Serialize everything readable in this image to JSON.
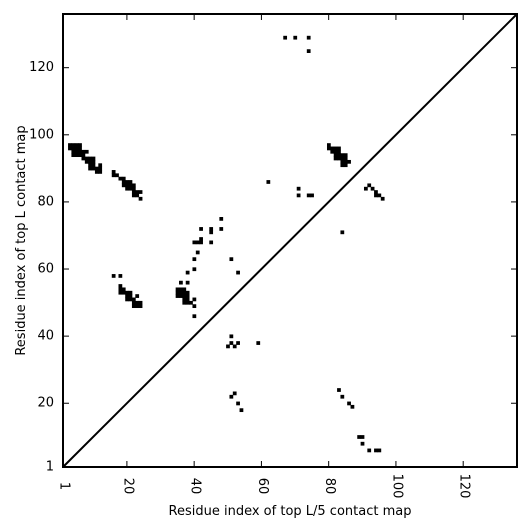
{
  "chart_data": {
    "type": "heatmap",
    "title": "",
    "xlabel": "Residue index of top L/5 contact map",
    "ylabel": "Residue index of top L contact map",
    "xlim": [
      1,
      136
    ],
    "ylim": [
      1,
      136
    ],
    "x_ticks": [
      1,
      20,
      40,
      60,
      80,
      100,
      120
    ],
    "y_ticks": [
      1,
      20,
      40,
      60,
      80,
      100,
      120
    ],
    "x_tick_rotation": 90,
    "diagonal": true,
    "grid": false,
    "points_below_diagonal": [
      [
        50,
        37
      ],
      [
        51,
        38
      ],
      [
        52,
        37
      ],
      [
        53,
        38
      ],
      [
        51,
        40
      ],
      [
        59,
        38
      ],
      [
        51,
        22
      ],
      [
        52,
        23
      ],
      [
        53,
        20
      ],
      [
        54,
        18
      ],
      [
        83,
        24
      ],
      [
        84,
        22
      ],
      [
        86,
        20
      ],
      [
        87,
        19
      ],
      [
        89,
        10
      ],
      [
        90,
        10
      ],
      [
        90,
        8
      ],
      [
        92,
        6
      ],
      [
        94,
        6
      ],
      [
        95,
        6
      ]
    ],
    "points_above_diagonal": [
      [
        3,
        97
      ],
      [
        4,
        97
      ],
      [
        5,
        97
      ],
      [
        6,
        97
      ],
      [
        3,
        96
      ],
      [
        4,
        96
      ],
      [
        5,
        96
      ],
      [
        6,
        96
      ],
      [
        4,
        95
      ],
      [
        5,
        95
      ],
      [
        6,
        95
      ],
      [
        7,
        95
      ],
      [
        8,
        95
      ],
      [
        4,
        94
      ],
      [
        5,
        94
      ],
      [
        6,
        94
      ],
      [
        7,
        94
      ],
      [
        7,
        93
      ],
      [
        8,
        93
      ],
      [
        9,
        93
      ],
      [
        10,
        93
      ],
      [
        8,
        92
      ],
      [
        9,
        92
      ],
      [
        10,
        92
      ],
      [
        9,
        91
      ],
      [
        10,
        91
      ],
      [
        12,
        91
      ],
      [
        9,
        90
      ],
      [
        10,
        90
      ],
      [
        11,
        90
      ],
      [
        12,
        90
      ],
      [
        11,
        89
      ],
      [
        12,
        89
      ],
      [
        16,
        89
      ],
      [
        16,
        88
      ],
      [
        17,
        88
      ],
      [
        18,
        87
      ],
      [
        19,
        87
      ],
      [
        19,
        86
      ],
      [
        20,
        86
      ],
      [
        21,
        86
      ],
      [
        19,
        85
      ],
      [
        20,
        85
      ],
      [
        21,
        85
      ],
      [
        22,
        85
      ],
      [
        20,
        84
      ],
      [
        21,
        84
      ],
      [
        22,
        84
      ],
      [
        22,
        83
      ],
      [
        23,
        83
      ],
      [
        24,
        83
      ],
      [
        22,
        82
      ],
      [
        23,
        82
      ],
      [
        24,
        81
      ],
      [
        16,
        58
      ],
      [
        18,
        58
      ],
      [
        18,
        55
      ],
      [
        18,
        54
      ],
      [
        19,
        54
      ],
      [
        18,
        53
      ],
      [
        19,
        53
      ],
      [
        20,
        53
      ],
      [
        21,
        53
      ],
      [
        20,
        52
      ],
      [
        21,
        52
      ],
      [
        23,
        52
      ],
      [
        20,
        51
      ],
      [
        21,
        51
      ],
      [
        22,
        51
      ],
      [
        22,
        50
      ],
      [
        23,
        50
      ],
      [
        24,
        50
      ],
      [
        22,
        49
      ],
      [
        23,
        49
      ],
      [
        24,
        49
      ],
      [
        36,
        56
      ],
      [
        38,
        56
      ],
      [
        35,
        54
      ],
      [
        36,
        54
      ],
      [
        37,
        54
      ],
      [
        35,
        53
      ],
      [
        36,
        53
      ],
      [
        37,
        53
      ],
      [
        38,
        53
      ],
      [
        35,
        52
      ],
      [
        36,
        52
      ],
      [
        37,
        52
      ],
      [
        38,
        52
      ],
      [
        37,
        51
      ],
      [
        38,
        51
      ],
      [
        37,
        50
      ],
      [
        38,
        50
      ],
      [
        39,
        50
      ],
      [
        40,
        51
      ],
      [
        40,
        49
      ],
      [
        40,
        46
      ],
      [
        38,
        59
      ],
      [
        40,
        60
      ],
      [
        40,
        63
      ],
      [
        41,
        65
      ],
      [
        40,
        68
      ],
      [
        41,
        68
      ],
      [
        42,
        68
      ],
      [
        42,
        69
      ],
      [
        42,
        72
      ],
      [
        45,
        68
      ],
      [
        45,
        71
      ],
      [
        45,
        72
      ],
      [
        48,
        72
      ],
      [
        48,
        75
      ],
      [
        51,
        63
      ],
      [
        53,
        59
      ],
      [
        62,
        86
      ],
      [
        71,
        84
      ],
      [
        71,
        82
      ],
      [
        74,
        82
      ],
      [
        75,
        82
      ],
      [
        67,
        129
      ],
      [
        70,
        129
      ],
      [
        74,
        129
      ],
      [
        74,
        125
      ],
      [
        80,
        97
      ],
      [
        80,
        96
      ],
      [
        81,
        96
      ],
      [
        82,
        96
      ],
      [
        83,
        96
      ],
      [
        81,
        95
      ],
      [
        82,
        95
      ],
      [
        83,
        95
      ],
      [
        82,
        94
      ],
      [
        83,
        94
      ],
      [
        84,
        94
      ],
      [
        85,
        94
      ],
      [
        82,
        93
      ],
      [
        83,
        93
      ],
      [
        84,
        93
      ],
      [
        85,
        93
      ],
      [
        84,
        92
      ],
      [
        85,
        92
      ],
      [
        86,
        92
      ],
      [
        84,
        91
      ],
      [
        85,
        91
      ],
      [
        84,
        71
      ],
      [
        91,
        84
      ],
      [
        92,
        85
      ],
      [
        93,
        84
      ],
      [
        94,
        83
      ],
      [
        94,
        82
      ],
      [
        95,
        82
      ],
      [
        96,
        81
      ]
    ]
  }
}
